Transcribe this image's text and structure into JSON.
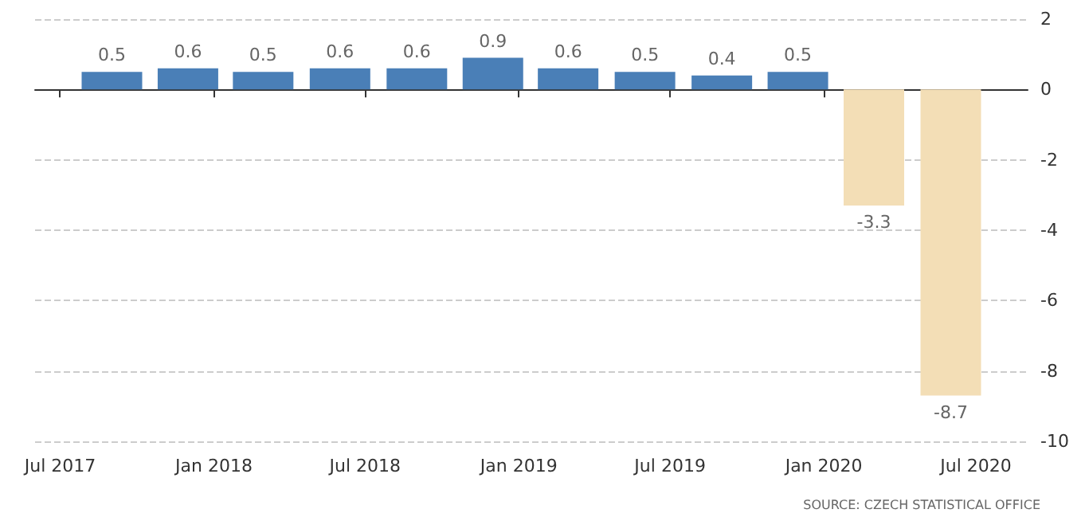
{
  "chart_data": {
    "type": "bar",
    "x": [
      "2017-09",
      "2017-12",
      "2018-03",
      "2018-06",
      "2018-09",
      "2018-12",
      "2019-03",
      "2019-06",
      "2019-09",
      "2019-12",
      "2020-03",
      "2020-06"
    ],
    "values": [
      0.5,
      0.6,
      0.5,
      0.6,
      0.6,
      0.9,
      0.6,
      0.5,
      0.4,
      0.5,
      -3.3,
      -8.7
    ],
    "colors": [
      "#4a7fb7",
      "#4a7fb7",
      "#4a7fb7",
      "#4a7fb7",
      "#4a7fb7",
      "#4a7fb7",
      "#4a7fb7",
      "#4a7fb7",
      "#4a7fb7",
      "#4a7fb7",
      "#f3deb6",
      "#f3deb6"
    ],
    "data_labels": true,
    "xlim": [
      "2017-06",
      "2020-09"
    ],
    "xticks": [
      {
        "value": "2017-07",
        "label": "Jul 2017"
      },
      {
        "value": "2018-01",
        "label": "Jan 2018"
      },
      {
        "value": "2018-07",
        "label": "Jul 2018"
      },
      {
        "value": "2019-01",
        "label": "Jan 2019"
      },
      {
        "value": "2019-07",
        "label": "Jul 2019"
      },
      {
        "value": "2020-01",
        "label": "Jan 2020"
      },
      {
        "value": "2020-07",
        "label": "Jul 2020"
      }
    ],
    "ylim": [
      -10,
      2
    ],
    "yticks": [
      -10,
      -8,
      -6,
      -4,
      -2,
      0,
      2
    ],
    "grid": "y",
    "annotations": [
      "SOURCE: CZECH STATISTICAL OFFICE"
    ]
  }
}
